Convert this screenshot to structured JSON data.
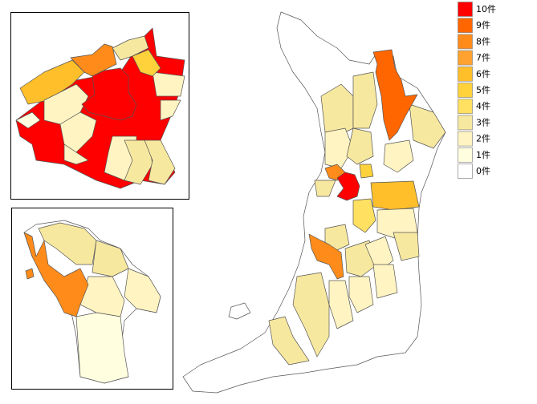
{
  "legend": {
    "items": [
      {
        "label": "10件",
        "color": "#ff0000"
      },
      {
        "label": "9件",
        "color": "#ff6600"
      },
      {
        "label": "8件",
        "color": "#ff8c1a"
      },
      {
        "label": "7件",
        "color": "#ffa230"
      },
      {
        "label": "6件",
        "color": "#ffbf2a"
      },
      {
        "label": "5件",
        "color": "#ffd23c"
      },
      {
        "label": "4件",
        "color": "#ffe060"
      },
      {
        "label": "3件",
        "color": "#f7e8a0"
      },
      {
        "label": "2件",
        "color": "#fff4c2"
      },
      {
        "label": "1件",
        "color": "#ffffe0"
      },
      {
        "label": "0件",
        "color": "#ffffff"
      }
    ]
  }
}
